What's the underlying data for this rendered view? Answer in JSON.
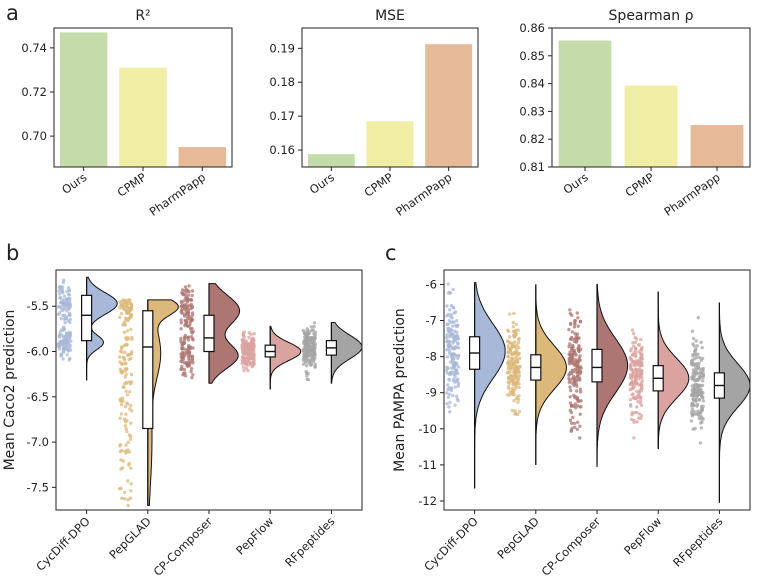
{
  "panel_letters": [
    "a",
    "b",
    "c"
  ],
  "chart_data": [
    {
      "type": "bar",
      "title": "R²",
      "categories": [
        "Ours",
        "CPMP",
        "PharmPapp"
      ],
      "values": [
        0.747,
        0.731,
        0.695
      ],
      "colors": [
        "#c5dcaa",
        "#f0eda4",
        "#e6b998"
      ],
      "ylim": [
        0.686,
        0.749
      ],
      "yticks": [
        0.7,
        0.72,
        0.74
      ],
      "ytick_labels": [
        "0.70",
        "0.72",
        "0.74"
      ],
      "xlabel": "",
      "ylabel": ""
    },
    {
      "type": "bar",
      "title": "MSE",
      "categories": [
        "Ours",
        "CPMP",
        "PharmPapp"
      ],
      "values": [
        0.1588,
        0.1685,
        0.1912
      ],
      "colors": [
        "#c5dcaa",
        "#f0eda4",
        "#e6b998"
      ],
      "ylim": [
        0.155,
        0.196
      ],
      "yticks": [
        0.16,
        0.17,
        0.18,
        0.19
      ],
      "ytick_labels": [
        "0.16",
        "0.17",
        "0.18",
        "0.19"
      ],
      "xlabel": "",
      "ylabel": ""
    },
    {
      "type": "bar",
      "title": "Spearman ρ",
      "categories": [
        "Ours",
        "CPMP",
        "PharmPapp"
      ],
      "values": [
        0.8555,
        0.8393,
        0.8251
      ],
      "colors": [
        "#c5dcaa",
        "#f0eda4",
        "#e6b998"
      ],
      "ylim": [
        0.81,
        0.86
      ],
      "yticks": [
        0.81,
        0.82,
        0.83,
        0.84,
        0.85,
        0.86
      ],
      "ytick_labels": [
        "0.81",
        "0.82",
        "0.83",
        "0.84",
        "0.85",
        "0.86"
      ],
      "xlabel": "",
      "ylabel": ""
    },
    {
      "type": "raincloud",
      "ylabel": "Mean Caco2 prediction",
      "categories": [
        "CycDiff-DPO",
        "PepGLAD",
        "CP-Composer",
        "PepFlow",
        "RFpeptides"
      ],
      "ylim": [
        -7.75,
        -5.1
      ],
      "yticks": [
        -7.5,
        -7.0,
        -6.5,
        -6.0,
        -5.5
      ],
      "ytick_labels": [
        "-7.5",
        "-7.0",
        "-6.5",
        "-6.0",
        "-5.5"
      ],
      "series": [
        {
          "name": "CycDiff-DPO",
          "color": "#a8b8d8",
          "min": -6.32,
          "q1": -5.88,
          "median": -5.6,
          "q3": -5.38,
          "max": -5.18,
          "modes": [
            [
              -5.47,
              0.12,
              1.0
            ],
            [
              -5.9,
              0.08,
              0.55
            ]
          ]
        },
        {
          "name": "PepGLAD",
          "color": "#dcb87a",
          "min": -7.7,
          "q1": -6.85,
          "median": -5.95,
          "q3": -5.55,
          "max": -5.43,
          "modes": [
            [
              -5.5,
              0.1,
              1.0
            ],
            [
              -6.0,
              0.3,
              0.45
            ],
            [
              -7.0,
              0.5,
              0.15
            ]
          ]
        },
        {
          "name": "CP-Composer",
          "color": "#ae7672",
          "min": -6.35,
          "q1": -6.0,
          "median": -5.85,
          "q3": -5.6,
          "max": -5.25,
          "modes": [
            [
              -5.55,
              0.17,
              0.85
            ],
            [
              -6.05,
              0.14,
              0.8
            ]
          ]
        },
        {
          "name": "PepFlow",
          "color": "#dba39f",
          "min": -6.42,
          "q1": -6.06,
          "median": -6.0,
          "q3": -5.93,
          "max": -5.72,
          "modes": [
            [
              -6.0,
              0.1,
              1.0
            ]
          ]
        },
        {
          "name": "RFpeptides",
          "color": "#a4a4a4",
          "min": -6.35,
          "q1": -6.04,
          "median": -5.96,
          "q3": -5.88,
          "max": -5.68,
          "modes": [
            [
              -5.95,
              0.13,
              1.0
            ]
          ]
        }
      ]
    },
    {
      "type": "raincloud",
      "ylabel": "Mean PAMPA prediction",
      "categories": [
        "CycDiff-DPO",
        "PepGLAD",
        "CP-Composer",
        "PepFlow",
        "RFpeptides"
      ],
      "ylim": [
        -12.25,
        -5.6
      ],
      "yticks": [
        -12,
        -11,
        -10,
        -9,
        -8,
        -7,
        -6
      ],
      "ytick_labels": [
        "-12",
        "-11",
        "-10",
        "-9",
        "-8",
        "-7",
        "-6"
      ],
      "series": [
        {
          "name": "CycDiff-DPO",
          "color": "#a8b8d8",
          "min": -11.65,
          "q1": -8.35,
          "median": -7.9,
          "q3": -7.45,
          "max": -5.95,
          "modes": [
            [
              -7.85,
              0.75,
              1.0
            ]
          ]
        },
        {
          "name": "PepGLAD",
          "color": "#dcb87a",
          "min": -11.0,
          "q1": -8.65,
          "median": -8.3,
          "q3": -7.95,
          "max": -6.0,
          "modes": [
            [
              -8.3,
              0.6,
              1.0
            ]
          ]
        },
        {
          "name": "CP-Composer",
          "color": "#ae7672",
          "min": -11.05,
          "q1": -8.7,
          "median": -8.3,
          "q3": -7.8,
          "max": -6.0,
          "modes": [
            [
              -8.25,
              0.75,
              1.0
            ]
          ]
        },
        {
          "name": "PepFlow",
          "color": "#dba39f",
          "min": -10.55,
          "q1": -8.95,
          "median": -8.6,
          "q3": -8.25,
          "max": -6.2,
          "modes": [
            [
              -8.6,
              0.55,
              1.0
            ]
          ]
        },
        {
          "name": "RFpeptides",
          "color": "#a4a4a4",
          "min": -12.05,
          "q1": -9.15,
          "median": -8.8,
          "q3": -8.45,
          "max": -6.5,
          "modes": [
            [
              -8.8,
              0.6,
              1.0
            ]
          ]
        }
      ]
    }
  ]
}
